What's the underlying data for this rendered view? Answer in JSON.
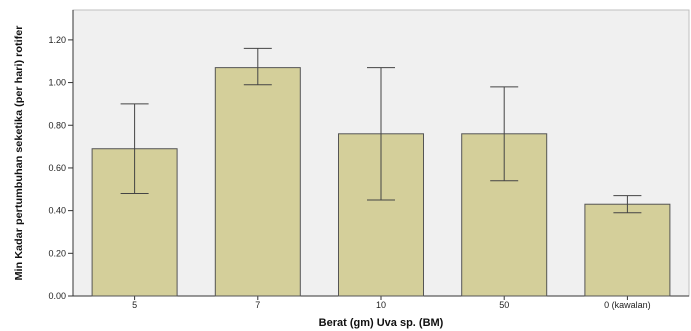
{
  "chart_data": {
    "type": "bar",
    "title": "",
    "xlabel": "Berat (gm) Uva sp. (BM)",
    "ylabel": "Min Kadar pertumbuhan seketika (per hari) rotifer",
    "categories": [
      "5",
      "7",
      "10",
      "50",
      "0 (kawalan)"
    ],
    "values": [
      0.69,
      1.07,
      0.76,
      0.76,
      0.43
    ],
    "error_low": [
      0.48,
      0.99,
      0.45,
      0.54,
      0.39
    ],
    "error_high": [
      0.9,
      1.16,
      1.07,
      0.98,
      0.47
    ],
    "ylim": [
      0,
      1.34
    ],
    "yticks": [
      "0.00",
      "0.20",
      "0.40",
      "0.60",
      "0.80",
      "1.00",
      "1.20"
    ],
    "grid": false,
    "colors": {
      "bar_fill": "#d4cf9a",
      "bar_stroke": "#555555",
      "plot_background": "#f0f0f0",
      "error_bar": "#444444"
    }
  }
}
